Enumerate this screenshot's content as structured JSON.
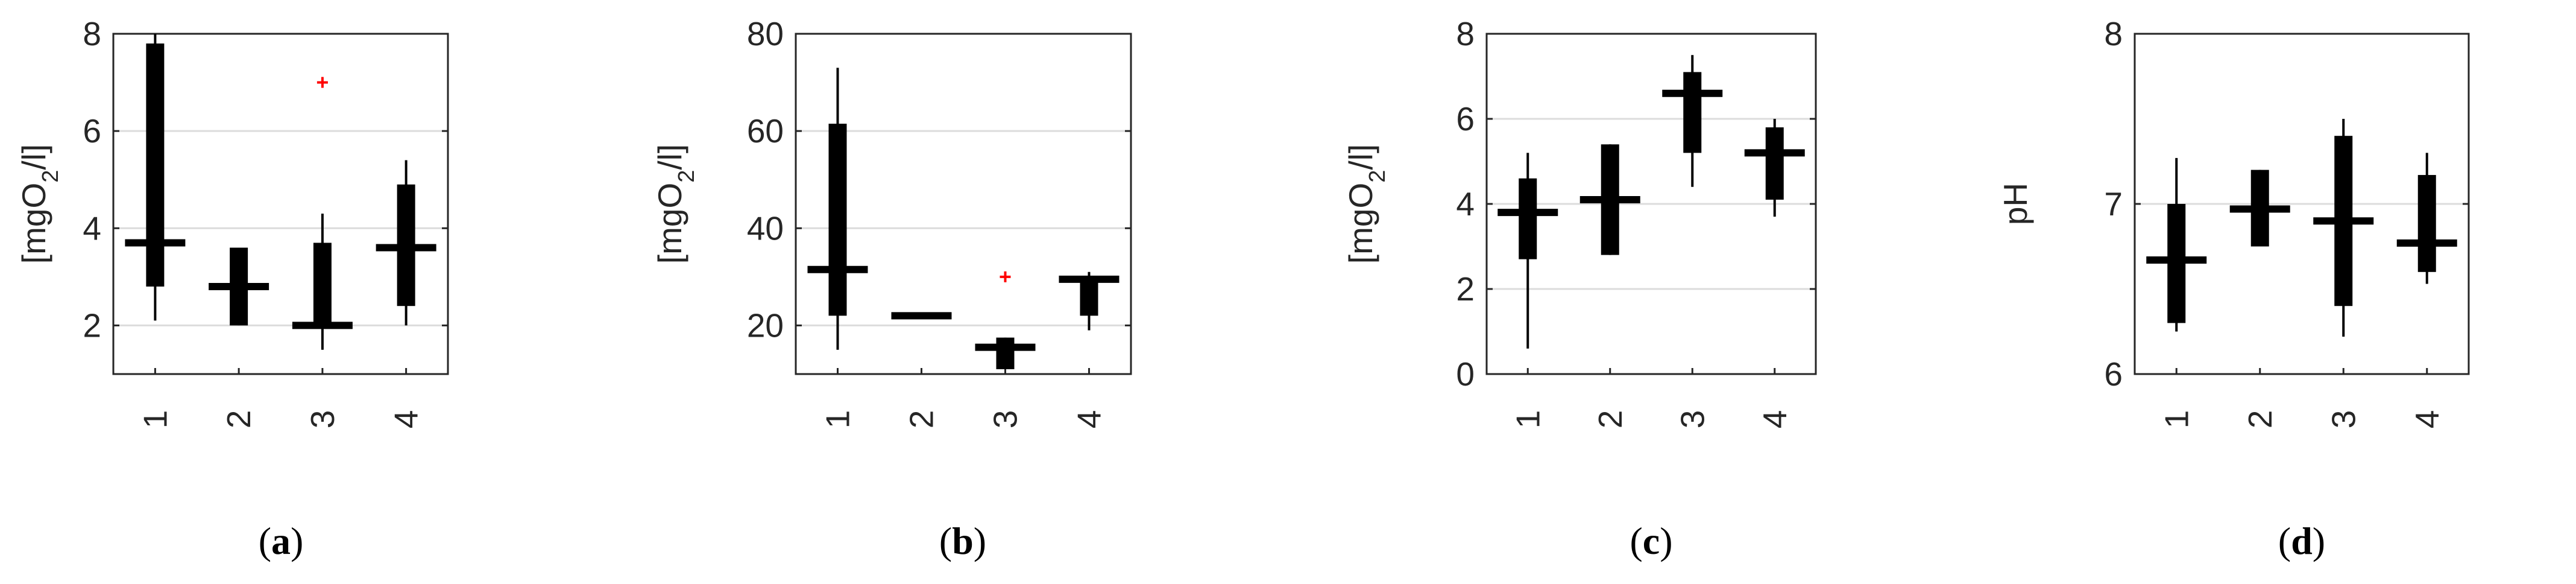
{
  "figure": {
    "colors": {
      "box": "#000000",
      "outlier": "#ff0000",
      "grid": "#dcdcdc",
      "axis": "#262626"
    }
  },
  "chart_data": [
    {
      "type": "box",
      "panel_label": "(a)",
      "ylabel": "[mgO2/l]",
      "ylabel_parts": {
        "base": "[mgO",
        "sub": "2",
        "tail": "/l]"
      },
      "ylim": [
        1,
        8
      ],
      "yticks": [
        2,
        4,
        6,
        8
      ],
      "grid": "horizontal",
      "categories": [
        "1",
        "2",
        "3",
        "4"
      ],
      "boxes": [
        {
          "category": "1",
          "whisker_low": 2.1,
          "q1": 2.8,
          "median": 3.7,
          "q3": 7.8,
          "whisker_high": 8.0,
          "outliers": []
        },
        {
          "category": "2",
          "whisker_low": 2.0,
          "q1": 2.0,
          "median": 2.8,
          "q3": 3.6,
          "whisker_high": 3.6,
          "outliers": []
        },
        {
          "category": "3",
          "whisker_low": 1.5,
          "q1": 2.0,
          "median": 2.0,
          "q3": 3.7,
          "whisker_high": 4.3,
          "outliers": [
            7.0
          ]
        },
        {
          "category": "4",
          "whisker_low": 2.0,
          "q1": 2.4,
          "median": 3.6,
          "q3": 4.9,
          "whisker_high": 5.4,
          "outliers": []
        }
      ]
    },
    {
      "type": "box",
      "panel_label": "(b)",
      "ylabel": "[mgO2/l]",
      "ylabel_parts": {
        "base": "[mgO",
        "sub": "2",
        "tail": "/l]"
      },
      "ylim": [
        10,
        80
      ],
      "yticks": [
        20,
        40,
        60,
        80
      ],
      "grid": "horizontal",
      "categories": [
        "1",
        "2",
        "3",
        "4"
      ],
      "boxes": [
        {
          "category": "1",
          "whisker_low": 15,
          "q1": 22,
          "median": 31.5,
          "q3": 61.5,
          "whisker_high": 73,
          "outliers": []
        },
        {
          "category": "2",
          "whisker_low": 22,
          "q1": 22,
          "median": 22,
          "q3": 22,
          "whisker_high": 22,
          "outliers": []
        },
        {
          "category": "3",
          "whisker_low": 11,
          "q1": 11,
          "median": 15.5,
          "q3": 17.5,
          "whisker_high": 17.5,
          "outliers": [
            30
          ]
        },
        {
          "category": "4",
          "whisker_low": 19,
          "q1": 22,
          "median": 29.5,
          "q3": 30,
          "whisker_high": 31,
          "outliers": []
        }
      ]
    },
    {
      "type": "box",
      "panel_label": "(c)",
      "ylabel": "[mgO2/l]",
      "ylabel_parts": {
        "base": "[mgO",
        "sub": "2",
        "tail": "/l]"
      },
      "ylim": [
        0,
        8
      ],
      "yticks": [
        0,
        2,
        4,
        6,
        8
      ],
      "grid": "horizontal",
      "categories": [
        "1",
        "2",
        "3",
        "4"
      ],
      "boxes": [
        {
          "category": "1",
          "whisker_low": 0.6,
          "q1": 2.7,
          "median": 3.8,
          "q3": 4.6,
          "whisker_high": 5.2,
          "outliers": []
        },
        {
          "category": "2",
          "whisker_low": 2.8,
          "q1": 2.8,
          "median": 4.1,
          "q3": 5.4,
          "whisker_high": 5.4,
          "outliers": []
        },
        {
          "category": "3",
          "whisker_low": 4.4,
          "q1": 5.2,
          "median": 6.6,
          "q3": 7.1,
          "whisker_high": 7.5,
          "outliers": []
        },
        {
          "category": "4",
          "whisker_low": 3.7,
          "q1": 4.1,
          "median": 5.2,
          "q3": 5.8,
          "whisker_high": 6.0,
          "outliers": []
        }
      ]
    },
    {
      "type": "box",
      "panel_label": "(d)",
      "ylabel": "pH",
      "ylabel_parts": {
        "base": "pH",
        "sub": "",
        "tail": ""
      },
      "ylim": [
        6,
        8
      ],
      "yticks": [
        6,
        7,
        8
      ],
      "grid": "horizontal",
      "categories": [
        "1",
        "2",
        "3",
        "4"
      ],
      "boxes": [
        {
          "category": "1",
          "whisker_low": 6.25,
          "q1": 6.3,
          "median": 6.67,
          "q3": 7.0,
          "whisker_high": 7.27,
          "outliers": []
        },
        {
          "category": "2",
          "whisker_low": 6.75,
          "q1": 6.75,
          "median": 6.97,
          "q3": 7.2,
          "whisker_high": 7.2,
          "outliers": []
        },
        {
          "category": "3",
          "whisker_low": 6.22,
          "q1": 6.4,
          "median": 6.9,
          "q3": 7.4,
          "whisker_high": 7.5,
          "outliers": []
        },
        {
          "category": "4",
          "whisker_low": 6.53,
          "q1": 6.6,
          "median": 6.77,
          "q3": 7.17,
          "whisker_high": 7.3,
          "outliers": []
        }
      ]
    }
  ]
}
